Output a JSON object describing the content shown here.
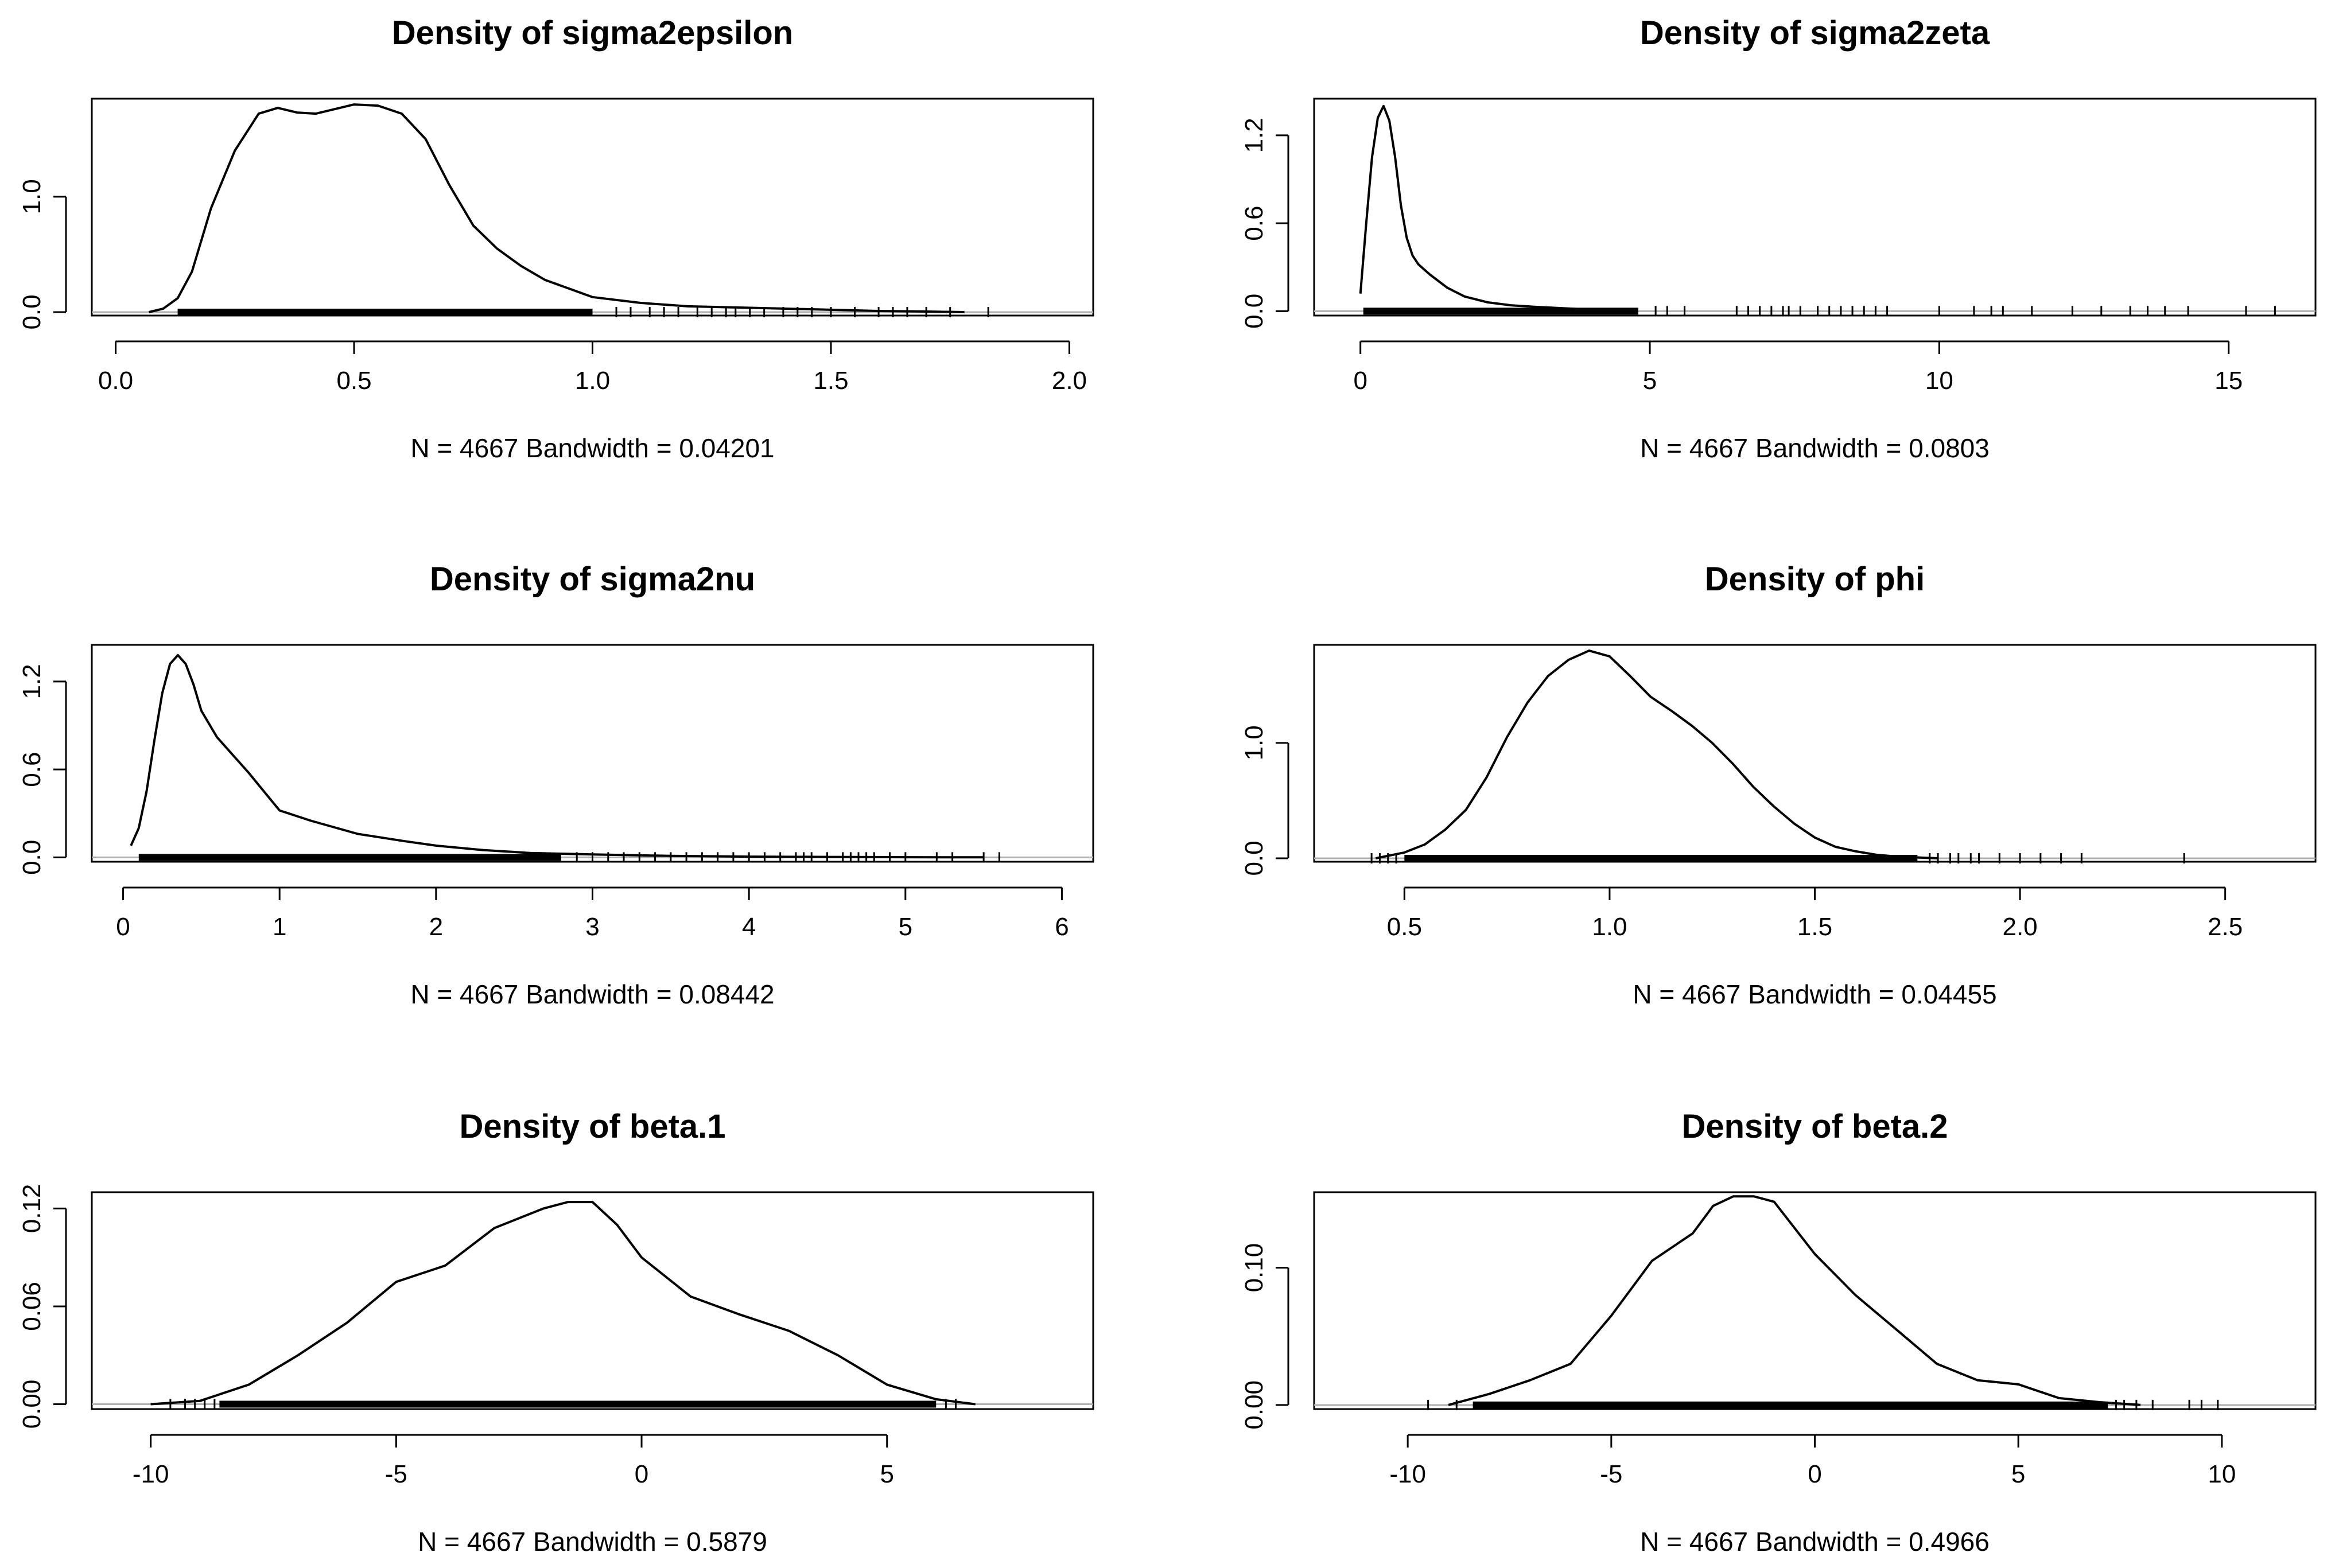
{
  "chart_data": [
    {
      "type": "line",
      "title": "Density of sigma2epsilon",
      "xlabel": "N = 4667   Bandwidth = 0.04201",
      "xlim": [
        -0.05,
        2.05
      ],
      "ylim": [
        -0.03,
        1.85
      ],
      "xticks": [
        0.0,
        0.5,
        1.0,
        1.5,
        2.0
      ],
      "xtick_labels": [
        "0.0",
        "0.5",
        "1.0",
        "1.5",
        "2.0"
      ],
      "yticks": [
        0.0,
        1.0
      ],
      "ytick_labels": [
        "0.0",
        "1.0"
      ],
      "x": [
        0.07,
        0.1,
        0.13,
        0.16,
        0.2,
        0.25,
        0.3,
        0.34,
        0.38,
        0.42,
        0.46,
        0.5,
        0.55,
        0.6,
        0.65,
        0.7,
        0.75,
        0.8,
        0.85,
        0.9,
        1.0,
        1.1,
        1.2,
        1.3,
        1.4,
        1.5,
        1.6,
        1.7,
        1.78
      ],
      "y": [
        0.0,
        0.03,
        0.12,
        0.35,
        0.9,
        1.4,
        1.72,
        1.77,
        1.73,
        1.72,
        1.76,
        1.8,
        1.79,
        1.72,
        1.5,
        1.1,
        0.75,
        0.55,
        0.4,
        0.28,
        0.13,
        0.08,
        0.05,
        0.04,
        0.03,
        0.02,
        0.01,
        0.005,
        0.0
      ],
      "rug": {
        "dense": [
          0.13,
          1.0
        ],
        "points": [
          1.05,
          1.08,
          1.12,
          1.15,
          1.18,
          1.22,
          1.25,
          1.28,
          1.3,
          1.33,
          1.36,
          1.4,
          1.43,
          1.46,
          1.5,
          1.55,
          1.6,
          1.63,
          1.66,
          1.7,
          1.75,
          1.83
        ]
      }
    },
    {
      "type": "line",
      "title": "Density of sigma2zeta",
      "xlabel": "N = 4667   Bandwidth = 0.0803",
      "xlim": [
        -0.8,
        16.5
      ],
      "ylim": [
        -0.03,
        1.45
      ],
      "xticks": [
        0,
        5,
        10,
        15
      ],
      "xtick_labels": [
        "0",
        "5",
        "10",
        "15"
      ],
      "yticks": [
        0.0,
        0.6,
        1.2
      ],
      "ytick_labels": [
        "0.0",
        "0.6",
        "1.2"
      ],
      "x": [
        0.0,
        0.1,
        0.2,
        0.3,
        0.4,
        0.5,
        0.6,
        0.7,
        0.8,
        0.9,
        1.0,
        1.2,
        1.5,
        1.8,
        2.2,
        2.6,
        3.0,
        3.5,
        4.0,
        4.8
      ],
      "y": [
        0.12,
        0.6,
        1.05,
        1.32,
        1.4,
        1.3,
        1.05,
        0.72,
        0.5,
        0.38,
        0.32,
        0.25,
        0.16,
        0.1,
        0.06,
        0.04,
        0.03,
        0.02,
        0.01,
        0.0
      ],
      "rug": {
        "dense": [
          0.05,
          4.8
        ],
        "points": [
          5.1,
          5.3,
          5.6,
          6.5,
          6.7,
          6.9,
          7.1,
          7.3,
          7.4,
          7.6,
          7.9,
          8.1,
          8.3,
          8.5,
          8.7,
          8.9,
          9.1,
          10.0,
          10.6,
          10.9,
          11.1,
          11.6,
          12.3,
          12.8,
          13.3,
          13.6,
          13.9,
          14.3,
          15.3,
          15.8
        ]
      }
    },
    {
      "type": "line",
      "title": "Density of sigma2nu",
      "xlabel": "N = 4667   Bandwidth = 0.08442",
      "xlim": [
        -0.2,
        6.2
      ],
      "ylim": [
        -0.03,
        1.45
      ],
      "xticks": [
        0,
        1,
        2,
        3,
        4,
        5,
        6
      ],
      "xtick_labels": [
        "0",
        "1",
        "2",
        "3",
        "4",
        "5",
        "6"
      ],
      "yticks": [
        0.0,
        0.6,
        1.2
      ],
      "ytick_labels": [
        "0.0",
        "0.6",
        "1.2"
      ],
      "x": [
        0.05,
        0.1,
        0.15,
        0.2,
        0.25,
        0.3,
        0.35,
        0.4,
        0.45,
        0.5,
        0.6,
        0.7,
        0.8,
        0.9,
        1.0,
        1.2,
        1.5,
        1.8,
        2.0,
        2.3,
        2.6,
        3.0,
        3.5,
        4.0,
        4.5,
        5.0,
        5.5
      ],
      "y": [
        0.08,
        0.2,
        0.45,
        0.8,
        1.12,
        1.32,
        1.38,
        1.32,
        1.18,
        1.0,
        0.82,
        0.7,
        0.58,
        0.45,
        0.32,
        0.25,
        0.16,
        0.11,
        0.08,
        0.05,
        0.03,
        0.02,
        0.01,
        0.005,
        0.003,
        0.001,
        0.0
      ],
      "rug": {
        "dense": [
          0.1,
          2.8
        ],
        "points": [
          2.9,
          3.0,
          3.1,
          3.2,
          3.3,
          3.4,
          3.5,
          3.6,
          3.7,
          3.8,
          3.9,
          4.0,
          4.1,
          4.2,
          4.3,
          4.35,
          4.4,
          4.5,
          4.6,
          4.65,
          4.7,
          4.75,
          4.8,
          4.9,
          5.0,
          5.2,
          5.3,
          5.5,
          5.6
        ]
      }
    },
    {
      "type": "line",
      "title": "Density of phi",
      "xlabel": "N = 4667   Bandwidth = 0.04455",
      "xlim": [
        0.28,
        2.72
      ],
      "ylim": [
        -0.03,
        1.85
      ],
      "xticks": [
        0.5,
        1.0,
        1.5,
        2.0,
        2.5
      ],
      "xtick_labels": [
        "0.5",
        "1.0",
        "1.5",
        "2.0",
        "2.5"
      ],
      "yticks": [
        0.0,
        1.0
      ],
      "ytick_labels": [
        "0.0",
        "1.0"
      ],
      "x": [
        0.43,
        0.5,
        0.55,
        0.6,
        0.65,
        0.7,
        0.75,
        0.8,
        0.85,
        0.9,
        0.95,
        1.0,
        1.05,
        1.1,
        1.15,
        1.2,
        1.25,
        1.3,
        1.35,
        1.4,
        1.45,
        1.5,
        1.55,
        1.6,
        1.65,
        1.7,
        1.8
      ],
      "y": [
        0.0,
        0.05,
        0.12,
        0.25,
        0.42,
        0.7,
        1.05,
        1.35,
        1.58,
        1.72,
        1.8,
        1.75,
        1.58,
        1.4,
        1.28,
        1.15,
        1.0,
        0.82,
        0.62,
        0.45,
        0.3,
        0.18,
        0.1,
        0.06,
        0.03,
        0.015,
        0.0
      ],
      "rug": {
        "dense": [
          0.5,
          1.75
        ],
        "points": [
          0.42,
          0.44,
          0.46,
          0.48,
          1.78,
          1.8,
          1.83,
          1.85,
          1.88,
          1.9,
          1.95,
          2.0,
          2.05,
          2.1,
          2.15,
          2.4
        ]
      }
    },
    {
      "type": "line",
      "title": "Density of beta.1",
      "xlabel": "N = 4667   Bandwidth = 0.5879",
      "xlim": [
        -11.2,
        9.2
      ],
      "ylim": [
        -0.003,
        0.13
      ],
      "xticks": [
        -10,
        -5,
        0,
        5
      ],
      "xtick_labels": [
        "-10",
        "-5",
        "0",
        "5"
      ],
      "yticks": [
        0.0,
        0.06,
        0.12
      ],
      "ytick_labels": [
        "0.00",
        "0.06",
        "0.12"
      ],
      "x": [
        -10.0,
        -9.0,
        -8.0,
        -7.0,
        -6.0,
        -5.0,
        -4.0,
        -3.0,
        -2.0,
        -1.5,
        -1.0,
        -0.5,
        0.0,
        0.5,
        1.0,
        2.0,
        3.0,
        4.0,
        5.0,
        6.0,
        6.8
      ],
      "y": [
        0.0,
        0.002,
        0.012,
        0.03,
        0.05,
        0.075,
        0.085,
        0.108,
        0.12,
        0.124,
        0.124,
        0.11,
        0.09,
        0.078,
        0.066,
        0.055,
        0.045,
        0.03,
        0.012,
        0.003,
        0.0
      ],
      "rug": {
        "dense": [
          -8.6,
          6.0
        ],
        "points": [
          -9.6,
          -9.3,
          -9.1,
          -8.9,
          -8.7,
          6.2,
          6.4
        ]
      }
    },
    {
      "type": "line",
      "title": "Density of beta.2",
      "xlabel": "N = 4667   Bandwidth = 0.4966",
      "xlim": [
        -12.3,
        12.3
      ],
      "ylim": [
        -0.003,
        0.155
      ],
      "xticks": [
        -10,
        -5,
        0,
        5,
        10
      ],
      "xtick_labels": [
        "-10",
        "-5",
        "0",
        "5",
        "10"
      ],
      "yticks": [
        0.0,
        0.1
      ],
      "ytick_labels": [
        "0.00",
        "0.10"
      ],
      "x": [
        -9.0,
        -8.0,
        -7.0,
        -6.0,
        -5.0,
        -4.0,
        -3.0,
        -2.5,
        -2.0,
        -1.5,
        -1.0,
        0.0,
        1.0,
        2.0,
        3.0,
        4.0,
        5.0,
        6.0,
        7.0,
        8.0
      ],
      "y": [
        0.0,
        0.008,
        0.018,
        0.03,
        0.065,
        0.105,
        0.125,
        0.145,
        0.152,
        0.152,
        0.148,
        0.11,
        0.08,
        0.055,
        0.03,
        0.018,
        0.015,
        0.005,
        0.002,
        0.0
      ],
      "rug": {
        "dense": [
          -8.4,
          7.2
        ],
        "points": [
          -9.5,
          -8.8,
          7.4,
          7.6,
          7.9,
          8.3,
          9.2,
          9.5,
          9.9
        ]
      }
    }
  ]
}
